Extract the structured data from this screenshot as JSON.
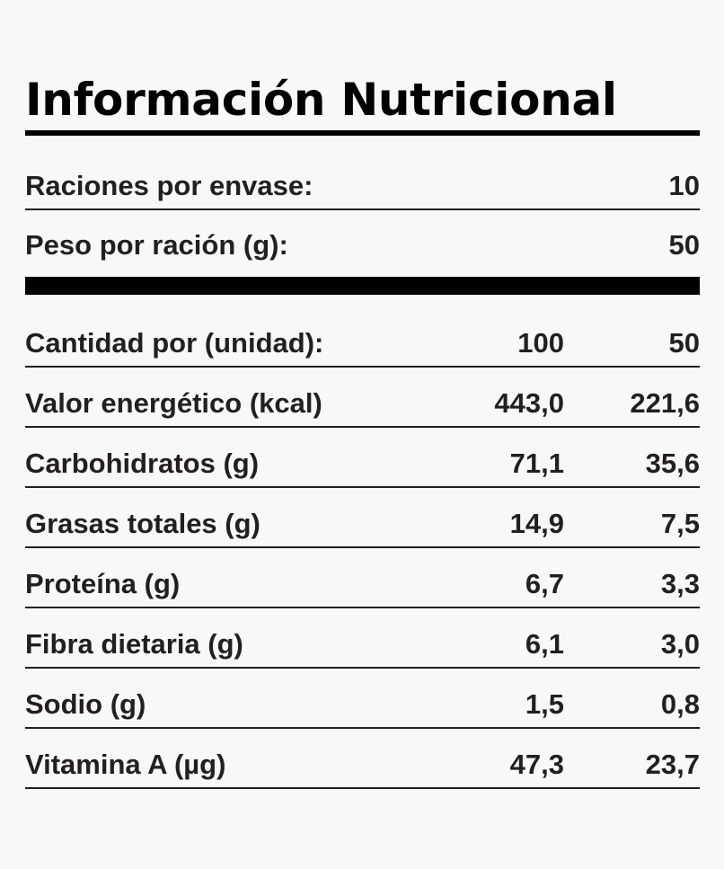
{
  "title": "Información Nutricional",
  "servings_label": "Raciones por envase:",
  "servings_value": "10",
  "weight_label": "Peso por ración (g):",
  "weight_value": "50",
  "header": {
    "label": "Cantidad por (unidad):",
    "col1": "100",
    "col2": "50"
  },
  "rows": [
    {
      "label": "Valor energético (kcal)",
      "v100": "443,0",
      "v50": "221,6"
    },
    {
      "label": "Carbohidratos (g)",
      "v100": "71,1",
      "v50": "35,6"
    },
    {
      "label": "Grasas totales (g)",
      "v100": "14,9",
      "v50": "7,5"
    },
    {
      "label": "Proteína (g)",
      "v100": "6,7",
      "v50": "3,3"
    },
    {
      "label": "Fibra dietaria (g)",
      "v100": "6,1",
      "v50": "3,0"
    },
    {
      "label": "Sodio (g)",
      "v100": "1,5",
      "v50": "0,8"
    },
    {
      "label": "Vitamina A (µg)",
      "v100": "47,3",
      "v50": "23,7"
    }
  ]
}
